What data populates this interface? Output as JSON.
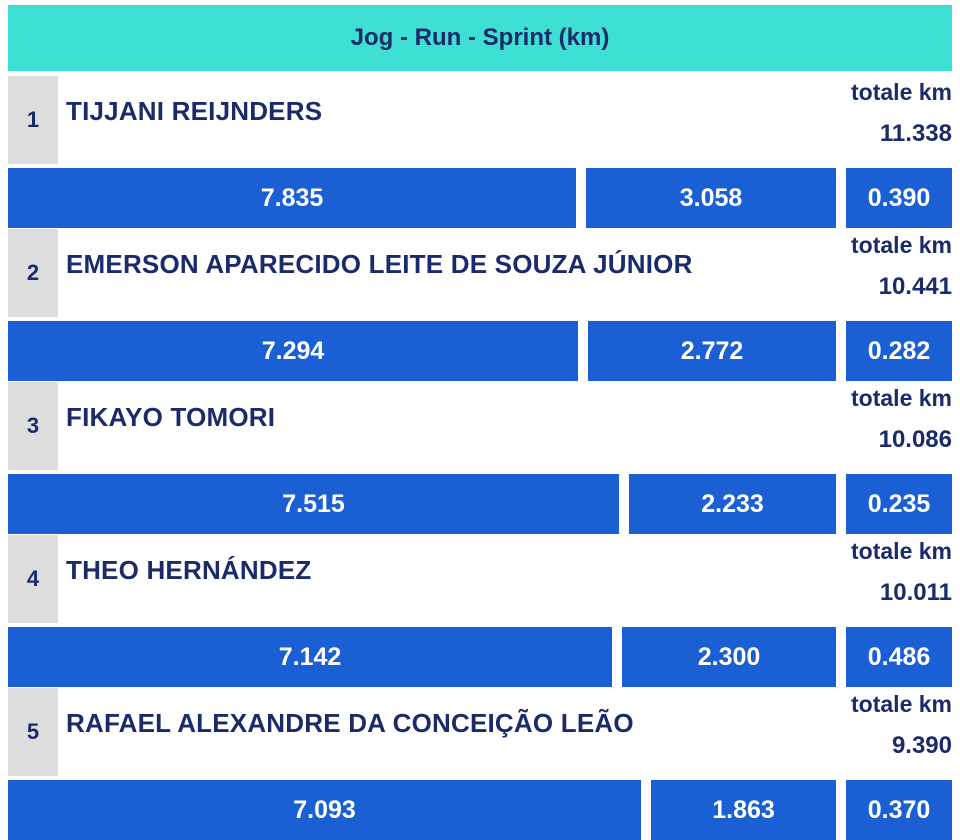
{
  "header": {
    "title": "Jog - Run - Sprint (km)"
  },
  "total_label": "totale km",
  "colors": {
    "header_bg": "#3ee0d3",
    "bar": "#1a5fd4",
    "text": "#1b2a6b",
    "rank_bg": "#dddddd"
  },
  "chart_data": {
    "type": "bar",
    "title": "Jog - Run - Sprint (km)",
    "stacked": true,
    "categories": [
      "TIJJANI REIJNDERS",
      "EMERSON APARECIDO LEITE DE SOUZA JÚNIOR",
      "FIKAYO TOMORI",
      "THEO HERNÁNDEZ",
      "RAFAEL ALEXANDRE DA CONCEIÇÃO LEÃO"
    ],
    "ranks": [
      "1",
      "2",
      "3",
      "4",
      "5"
    ],
    "totals": [
      "11.338",
      "10.441",
      "10.086",
      "10.011",
      "9.390"
    ],
    "series": [
      {
        "values": [
          "7.835",
          "7.294",
          "7.515",
          "7.142",
          "7.093"
        ]
      },
      {
        "values": [
          "3.058",
          "2.772",
          "2.233",
          "2.300",
          "1.863"
        ]
      },
      {
        "values": [
          "0.390",
          "0.282",
          "0.235",
          "0.486",
          "0.370"
        ]
      }
    ],
    "grid": false,
    "legend": "none"
  }
}
